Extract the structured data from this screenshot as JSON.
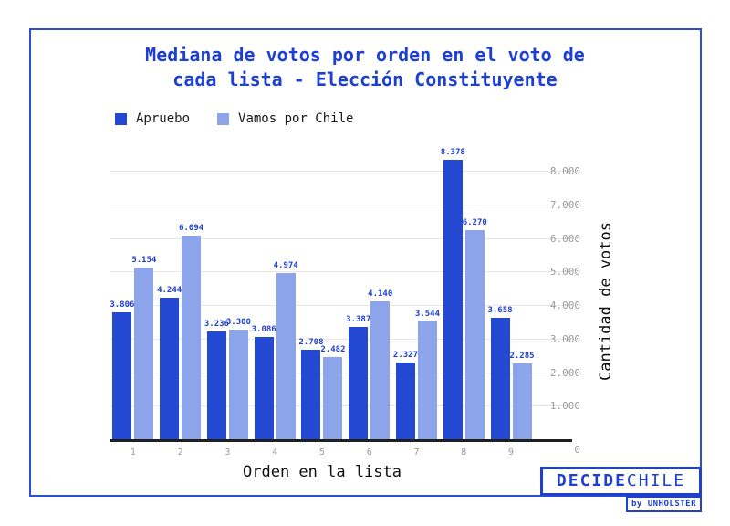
{
  "title": {
    "line1": "Mediana de votos por orden en el voto de",
    "line2": "cada lista - Elección Constituyente"
  },
  "chart_data": {
    "type": "bar",
    "title": "Mediana de votos por orden en el voto de cada lista - Elección Constituyente",
    "categories": [
      "1",
      "2",
      "3",
      "4",
      "5",
      "6",
      "7",
      "8",
      "9"
    ],
    "series": [
      {
        "name": "Apruebo",
        "color": "#2348d1",
        "values": [
          3806,
          4244,
          3236,
          3086,
          2708,
          3387,
          2327,
          8378,
          3658
        ],
        "labels": [
          "3.806",
          "4.244",
          "3.236",
          "3.086",
          "2.708",
          "3.387",
          "2.327",
          "8.378",
          "3.658"
        ]
      },
      {
        "name": "Vamos por Chile",
        "color": "#8ba4ea",
        "values": [
          5154,
          6094,
          3300,
          4974,
          2482,
          4140,
          3544,
          6270,
          2285
        ],
        "labels": [
          "5.154",
          "6.094",
          "3.300",
          "4.974",
          "2.482",
          "4.140",
          "3.544",
          "6.270",
          "2.285"
        ]
      }
    ],
    "xlabel": "Orden en la lista",
    "ylabel": "Cantidad de votos",
    "ylim": [
      0,
      8500
    ],
    "yticks": {
      "values": [
        0,
        1000,
        2000,
        3000,
        4000,
        5000,
        6000,
        7000,
        8000
      ],
      "labels": [
        "0",
        "1.000",
        "2.000",
        "3.000",
        "4.000",
        "5.000",
        "6.000",
        "7.000",
        "8.000"
      ],
      "position": "right"
    },
    "grid": true,
    "legend_position": "top-left"
  },
  "branding": {
    "brand_bold": "DECIDE",
    "brand_light": "CHILE",
    "byline": "by UNHOLSTER"
  },
  "colors": {
    "accent_blue": "#1e40d2",
    "dark_bar": "#2348d1",
    "light_bar": "#8ba4ea",
    "page_border": "#2c4ed4",
    "gridline": "#e7e7e7",
    "axis_line": "#1f1f1f",
    "tick_text": "#9b9b9b"
  }
}
